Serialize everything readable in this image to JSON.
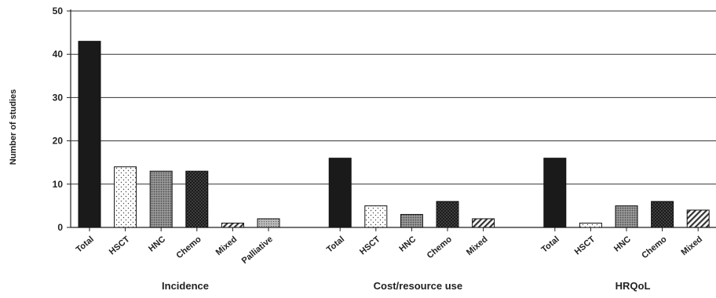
{
  "chart_data": {
    "type": "bar",
    "title": "",
    "ylabel": "Number of studies",
    "xlabel": "",
    "ylim": [
      0,
      50
    ],
    "yticks": [
      0,
      10,
      20,
      30,
      40,
      50
    ],
    "grid": true,
    "legend": "none",
    "groups": [
      {
        "name": "Incidence",
        "bars": [
          {
            "label": "Total",
            "value": 43,
            "pattern": "solid"
          },
          {
            "label": "HSCT",
            "value": 14,
            "pattern": "sparse-dots"
          },
          {
            "label": "HNC",
            "value": 13,
            "pattern": "grey-dots"
          },
          {
            "label": "Chemo",
            "value": 13,
            "pattern": "dark-dots"
          },
          {
            "label": "Mixed",
            "value": 1,
            "pattern": "diagonal"
          },
          {
            "label": "Palliative",
            "value": 2,
            "pattern": "grey-fine"
          }
        ]
      },
      {
        "name": "Cost/resource use",
        "bars": [
          {
            "label": "Total",
            "value": 16,
            "pattern": "solid"
          },
          {
            "label": "HSCT",
            "value": 5,
            "pattern": "sparse-dots"
          },
          {
            "label": "HNC",
            "value": 3,
            "pattern": "grey-dots"
          },
          {
            "label": "Chemo",
            "value": 6,
            "pattern": "dark-dots"
          },
          {
            "label": "Mixed",
            "value": 2,
            "pattern": "diagonal"
          }
        ]
      },
      {
        "name": "HRQoL",
        "bars": [
          {
            "label": "Total",
            "value": 16,
            "pattern": "solid"
          },
          {
            "label": "HSCT",
            "value": 1,
            "pattern": "sparse-dots"
          },
          {
            "label": "HNC",
            "value": 5,
            "pattern": "grey-dots"
          },
          {
            "label": "Chemo",
            "value": 6,
            "pattern": "dark-dots"
          },
          {
            "label": "Mixed",
            "value": 4,
            "pattern": "diagonal"
          }
        ]
      }
    ]
  }
}
